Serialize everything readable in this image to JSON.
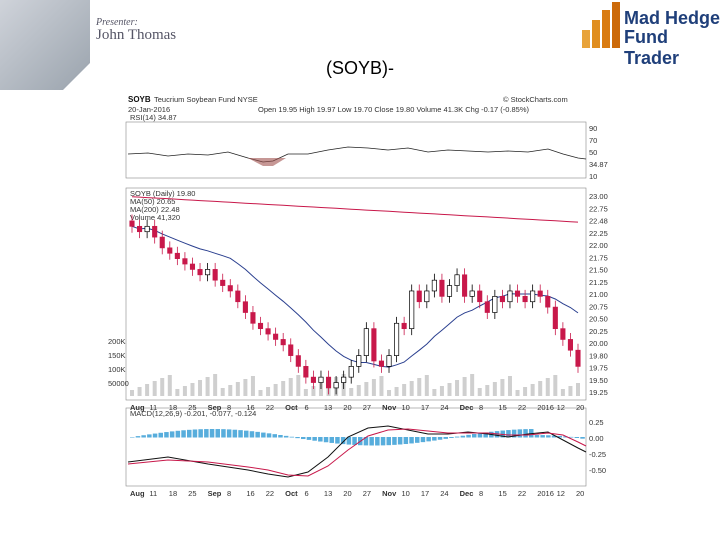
{
  "slide": {
    "presenter_label": "Presenter:",
    "presenter_name": "John Thomas",
    "logo_line1": "Mad Hedge",
    "logo_line2": "Fund Trader",
    "title": "(SOYB)-"
  },
  "chart_header": {
    "symbol": "SOYB",
    "fund_name": "Teucrium Soybean Fund NYSE",
    "date": "20-Jan-2016",
    "quote": "Open 19.95  High 19.97  Low 19.70  Close 19.80  Volume 41.3K  Chg -0.17 (-0.85%)",
    "source": "© StockCharts.com",
    "rsi_label": "RSI(14) 34.87",
    "price_legend": [
      "SOYB (Daily) 19.80",
      "MA(50) 20.65",
      "MA(200) 22.48",
      "Volume 41,320"
    ],
    "macd_label": "MACD(12,26,9) -0.201, -0.077, -0.124"
  },
  "rsi_ticks": [
    "90",
    "70",
    "50",
    "34.87",
    "10"
  ],
  "price_ticks": [
    "23.00",
    "22.75",
    "22.48",
    "22.25",
    "22.00",
    "21.75",
    "21.50",
    "21.25",
    "21.00",
    "20.75",
    "20.50",
    "20.25",
    "20.00",
    "19.80",
    "19.75",
    "19.50",
    "19.25"
  ],
  "volume_ticks": [
    "200K",
    "150K",
    "100K",
    "50000"
  ],
  "macd_ticks": [
    "0.25",
    "0.00",
    "-0.25",
    "-0.50"
  ],
  "date_labels": [
    "Aug",
    "11",
    "18",
    "25",
    "Sep",
    "8",
    "16",
    "22",
    "Oct",
    "6",
    "13",
    "20",
    "27",
    "Nov",
    "10",
    "17",
    "24",
    "Dec",
    "8",
    "15",
    "22",
    "2016",
    "12",
    "20"
  ],
  "colors": {
    "up": "#000000",
    "down": "#c8184a",
    "ma50": "#2a3f8f",
    "ma200": "#c8184a",
    "volume": "#cfcfcf",
    "macd_hist": "#3a9fd6"
  },
  "chart_data": {
    "type": "candlestick",
    "closes": [
      22.4,
      22.3,
      22.4,
      22.2,
      22.0,
      21.9,
      21.8,
      21.7,
      21.6,
      21.5,
      21.6,
      21.4,
      21.3,
      21.2,
      21.0,
      20.8,
      20.6,
      20.5,
      20.4,
      20.3,
      20.2,
      20.0,
      19.8,
      19.6,
      19.5,
      19.6,
      19.4,
      19.5,
      19.6,
      19.8,
      20.0,
      20.5,
      19.9,
      19.8,
      20.0,
      20.6,
      20.5,
      21.2,
      21.0,
      21.2,
      21.4,
      21.1,
      21.3,
      21.5,
      21.1,
      21.2,
      21.0,
      20.8,
      21.1,
      21.0,
      21.2,
      21.1,
      21.0,
      21.2,
      21.1,
      20.9,
      20.5,
      20.3,
      20.1,
      19.8
    ]
  }
}
